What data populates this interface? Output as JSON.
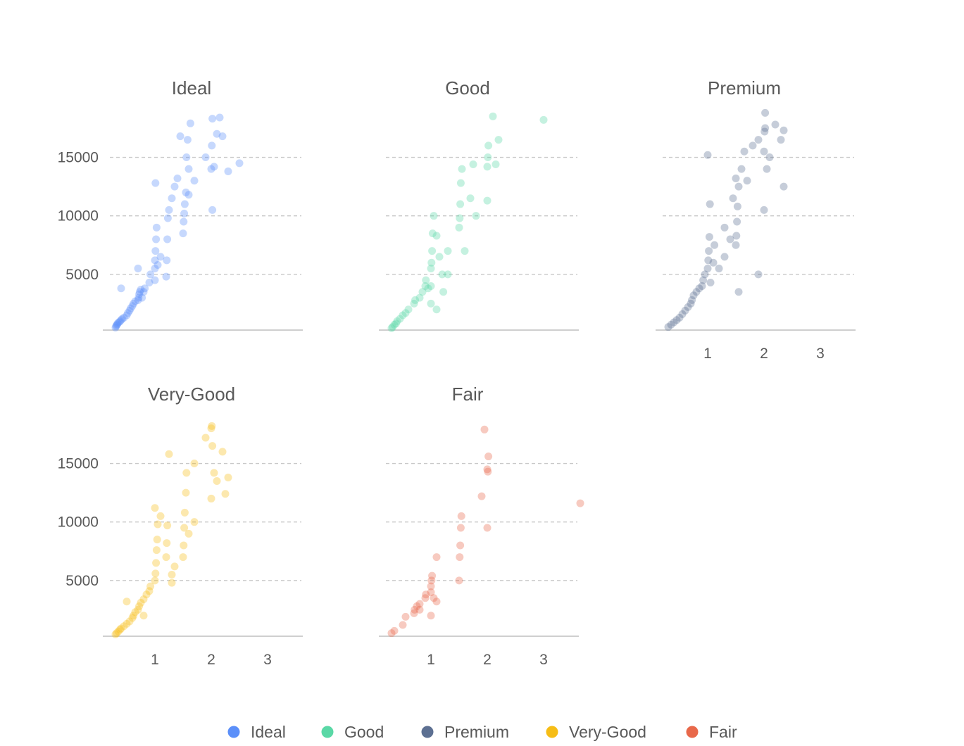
{
  "chart_data": {
    "type": "scatter",
    "title": "",
    "xlabel": "",
    "ylabel": "",
    "xlim": [
      0.2,
      3.6
    ],
    "ylim": [
      300,
      18700
    ],
    "x_ticks": [
      1,
      2,
      3
    ],
    "x_tick_labels": [
      "1",
      "2",
      "3"
    ],
    "y_ticks": [
      5000,
      10000,
      15000
    ],
    "y_tick_labels": [
      "5000",
      "10000",
      "15000"
    ],
    "grid": "horizontal dashed",
    "legend_position": "bottom-center",
    "series": [
      {
        "name": "Ideal",
        "color": "#5B8FF9",
        "points": [
          [
            0.3,
            450
          ],
          [
            0.31,
            560
          ],
          [
            0.32,
            650
          ],
          [
            0.33,
            720
          ],
          [
            0.34,
            820
          ],
          [
            0.36,
            900
          ],
          [
            0.38,
            980
          ],
          [
            0.4,
            1100
          ],
          [
            0.42,
            1200
          ],
          [
            0.45,
            1300
          ],
          [
            0.5,
            1500
          ],
          [
            0.52,
            1700
          ],
          [
            0.55,
            1900
          ],
          [
            0.57,
            2100
          ],
          [
            0.6,
            2300
          ],
          [
            0.62,
            2500
          ],
          [
            0.65,
            2700
          ],
          [
            0.7,
            2800
          ],
          [
            0.71,
            3000
          ],
          [
            0.72,
            3300
          ],
          [
            0.73,
            3500
          ],
          [
            0.75,
            3700
          ],
          [
            0.77,
            3000
          ],
          [
            0.8,
            3500
          ],
          [
            0.82,
            3800
          ],
          [
            0.9,
            4300
          ],
          [
            0.92,
            5000
          ],
          [
            1.0,
            4500
          ],
          [
            1.0,
            5500
          ],
          [
            1.0,
            6200
          ],
          [
            1.01,
            7000
          ],
          [
            1.02,
            8000
          ],
          [
            1.03,
            9000
          ],
          [
            1.05,
            5800
          ],
          [
            1.1,
            6500
          ],
          [
            1.2,
            4800
          ],
          [
            1.21,
            6200
          ],
          [
            1.22,
            8000
          ],
          [
            1.23,
            9800
          ],
          [
            1.25,
            10500
          ],
          [
            1.3,
            11500
          ],
          [
            1.35,
            12500
          ],
          [
            1.5,
            8500
          ],
          [
            1.51,
            9500
          ],
          [
            1.52,
            10200
          ],
          [
            1.53,
            11000
          ],
          [
            1.55,
            12000
          ],
          [
            1.6,
            14000
          ],
          [
            1.7,
            13000
          ],
          [
            1.56,
            15000
          ],
          [
            1.58,
            16500
          ],
          [
            1.9,
            15000
          ],
          [
            2.0,
            14000
          ],
          [
            2.01,
            16000
          ],
          [
            2.02,
            18300
          ],
          [
            2.05,
            14200
          ],
          [
            2.1,
            17000
          ],
          [
            2.15,
            18400
          ],
          [
            2.2,
            16800
          ],
          [
            2.3,
            13800
          ],
          [
            2.5,
            14500
          ],
          [
            0.4,
            3800
          ],
          [
            0.7,
            5500
          ],
          [
            1.01,
            12800
          ],
          [
            1.4,
            13200
          ],
          [
            1.6,
            11800
          ],
          [
            2.02,
            10500
          ],
          [
            1.45,
            16800
          ],
          [
            1.63,
            17900
          ]
        ]
      },
      {
        "name": "Good",
        "color": "#5AD8A6",
        "points": [
          [
            0.3,
            400
          ],
          [
            0.32,
            500
          ],
          [
            0.35,
            700
          ],
          [
            0.38,
            800
          ],
          [
            0.4,
            1000
          ],
          [
            0.45,
            1200
          ],
          [
            0.5,
            1500
          ],
          [
            0.55,
            1700
          ],
          [
            0.6,
            2000
          ],
          [
            0.7,
            2500
          ],
          [
            0.72,
            2800
          ],
          [
            0.8,
            3000
          ],
          [
            0.85,
            3500
          ],
          [
            0.9,
            4000
          ],
          [
            0.91,
            4500
          ],
          [
            0.95,
            3800
          ],
          [
            1.0,
            4000
          ],
          [
            1.0,
            5500
          ],
          [
            1.01,
            6000
          ],
          [
            1.02,
            7000
          ],
          [
            1.03,
            8500
          ],
          [
            1.05,
            10000
          ],
          [
            1.1,
            8300
          ],
          [
            1.15,
            6500
          ],
          [
            1.2,
            5000
          ],
          [
            1.22,
            3500
          ],
          [
            1.3,
            7000
          ],
          [
            1.5,
            9000
          ],
          [
            1.51,
            9800
          ],
          [
            1.52,
            11000
          ],
          [
            1.53,
            12800
          ],
          [
            1.55,
            14000
          ],
          [
            1.6,
            7000
          ],
          [
            1.7,
            11500
          ],
          [
            1.8,
            10000
          ],
          [
            2.0,
            14200
          ],
          [
            2.01,
            15000
          ],
          [
            2.02,
            16000
          ],
          [
            2.1,
            18500
          ],
          [
            2.2,
            16500
          ],
          [
            3.0,
            18200
          ],
          [
            1.0,
            2500
          ],
          [
            1.1,
            2000
          ],
          [
            1.3,
            5000
          ],
          [
            2.0,
            11300
          ],
          [
            1.75,
            14400
          ],
          [
            2.15,
            14400
          ]
        ]
      },
      {
        "name": "Premium",
        "color": "#5D7092",
        "points": [
          [
            0.3,
            500
          ],
          [
            0.35,
            700
          ],
          [
            0.4,
            900
          ],
          [
            0.45,
            1100
          ],
          [
            0.5,
            1300
          ],
          [
            0.55,
            1600
          ],
          [
            0.6,
            1900
          ],
          [
            0.65,
            2200
          ],
          [
            0.7,
            2500
          ],
          [
            0.72,
            2800
          ],
          [
            0.75,
            3200
          ],
          [
            0.8,
            3500
          ],
          [
            0.85,
            3800
          ],
          [
            0.9,
            4000
          ],
          [
            0.92,
            4500
          ],
          [
            0.95,
            5000
          ],
          [
            1.0,
            5500
          ],
          [
            1.01,
            6200
          ],
          [
            1.02,
            7000
          ],
          [
            1.03,
            8200
          ],
          [
            1.04,
            11000
          ],
          [
            1.05,
            4300
          ],
          [
            1.1,
            6000
          ],
          [
            1.12,
            7500
          ],
          [
            1.2,
            5500
          ],
          [
            1.3,
            6500
          ],
          [
            1.4,
            8000
          ],
          [
            1.45,
            11500
          ],
          [
            1.5,
            7500
          ],
          [
            1.51,
            8300
          ],
          [
            1.52,
            9500
          ],
          [
            1.53,
            10800
          ],
          [
            1.55,
            12500
          ],
          [
            1.6,
            14000
          ],
          [
            1.65,
            15500
          ],
          [
            1.7,
            13000
          ],
          [
            1.8,
            16000
          ],
          [
            1.9,
            16500
          ],
          [
            2.0,
            15500
          ],
          [
            2.01,
            17200
          ],
          [
            2.02,
            17500
          ],
          [
            2.05,
            14000
          ],
          [
            2.1,
            15000
          ],
          [
            2.2,
            17800
          ],
          [
            2.3,
            16500
          ],
          [
            2.35,
            12500
          ],
          [
            2.0,
            10500
          ],
          [
            1.9,
            5000
          ],
          [
            1.55,
            3500
          ],
          [
            1.0,
            15200
          ],
          [
            1.5,
            13200
          ],
          [
            2.02,
            18800
          ],
          [
            2.35,
            17300
          ],
          [
            1.3,
            9000
          ]
        ]
      },
      {
        "name": "Very-Good",
        "color": "#F6BD16",
        "points": [
          [
            0.3,
            400
          ],
          [
            0.32,
            500
          ],
          [
            0.35,
            650
          ],
          [
            0.38,
            800
          ],
          [
            0.4,
            900
          ],
          [
            0.45,
            1100
          ],
          [
            0.5,
            1300
          ],
          [
            0.55,
            1500
          ],
          [
            0.6,
            1800
          ],
          [
            0.62,
            2000
          ],
          [
            0.65,
            2300
          ],
          [
            0.7,
            2500
          ],
          [
            0.72,
            2800
          ],
          [
            0.75,
            3100
          ],
          [
            0.8,
            3400
          ],
          [
            0.85,
            3800
          ],
          [
            0.9,
            4100
          ],
          [
            0.92,
            4500
          ],
          [
            1.0,
            5000
          ],
          [
            1.01,
            5600
          ],
          [
            1.02,
            6500
          ],
          [
            1.03,
            7600
          ],
          [
            1.04,
            8500
          ],
          [
            1.05,
            9800
          ],
          [
            1.1,
            10500
          ],
          [
            1.2,
            7000
          ],
          [
            1.21,
            8200
          ],
          [
            1.22,
            9700
          ],
          [
            1.25,
            15800
          ],
          [
            1.3,
            5500
          ],
          [
            1.35,
            6200
          ],
          [
            1.5,
            7000
          ],
          [
            1.51,
            8000
          ],
          [
            1.52,
            9500
          ],
          [
            1.53,
            10800
          ],
          [
            1.55,
            12500
          ],
          [
            1.56,
            14200
          ],
          [
            1.6,
            9000
          ],
          [
            1.7,
            15000
          ],
          [
            1.9,
            17200
          ],
          [
            2.0,
            18000
          ],
          [
            2.01,
            18200
          ],
          [
            2.02,
            16500
          ],
          [
            2.05,
            14200
          ],
          [
            2.1,
            13500
          ],
          [
            2.2,
            16000
          ],
          [
            2.25,
            12400
          ],
          [
            2.3,
            13800
          ],
          [
            2.0,
            12000
          ],
          [
            0.5,
            3200
          ],
          [
            0.8,
            2000
          ],
          [
            1.7,
            10000
          ],
          [
            1.0,
            11200
          ],
          [
            1.3,
            4800
          ]
        ]
      },
      {
        "name": "Fair",
        "color": "#E8684A",
        "points": [
          [
            0.3,
            500
          ],
          [
            0.35,
            700
          ],
          [
            0.5,
            1200
          ],
          [
            0.55,
            1900
          ],
          [
            0.7,
            2200
          ],
          [
            0.71,
            2500
          ],
          [
            0.75,
            2800
          ],
          [
            0.8,
            3000
          ],
          [
            0.9,
            3500
          ],
          [
            0.91,
            3800
          ],
          [
            1.0,
            4000
          ],
          [
            1.0,
            4500
          ],
          [
            1.01,
            5000
          ],
          [
            1.02,
            5400
          ],
          [
            1.05,
            3500
          ],
          [
            1.1,
            3200
          ],
          [
            1.0,
            2000
          ],
          [
            1.1,
            7000
          ],
          [
            1.5,
            5000
          ],
          [
            1.51,
            7000
          ],
          [
            1.52,
            8000
          ],
          [
            1.53,
            9500
          ],
          [
            1.54,
            10500
          ],
          [
            1.9,
            12200
          ],
          [
            1.95,
            17900
          ],
          [
            2.0,
            14500
          ],
          [
            2.01,
            14300
          ],
          [
            2.02,
            15600
          ],
          [
            2.0,
            9500
          ],
          [
            3.65,
            11600
          ],
          [
            0.8,
            2500
          ]
        ]
      }
    ],
    "panels": [
      {
        "title": "Ideal",
        "series": "Ideal",
        "show_x_ticks": false,
        "show_y_ticks": true
      },
      {
        "title": "Good",
        "series": "Good",
        "show_x_ticks": false,
        "show_y_ticks": false
      },
      {
        "title": "Premium",
        "series": "Premium",
        "show_x_ticks": true,
        "show_y_ticks": false
      },
      {
        "title": "Very-Good",
        "series": "Very-Good",
        "show_x_ticks": true,
        "show_y_ticks": true
      },
      {
        "title": "Fair",
        "series": "Fair",
        "show_x_ticks": true,
        "show_y_ticks": false
      }
    ],
    "legend": [
      {
        "label": "Ideal",
        "color": "#5B8FF9"
      },
      {
        "label": "Good",
        "color": "#5AD8A6"
      },
      {
        "label": "Premium",
        "color": "#5D7092"
      },
      {
        "label": "Very-Good",
        "color": "#F6BD16"
      },
      {
        "label": "Fair",
        "color": "#E8684A"
      }
    ]
  }
}
